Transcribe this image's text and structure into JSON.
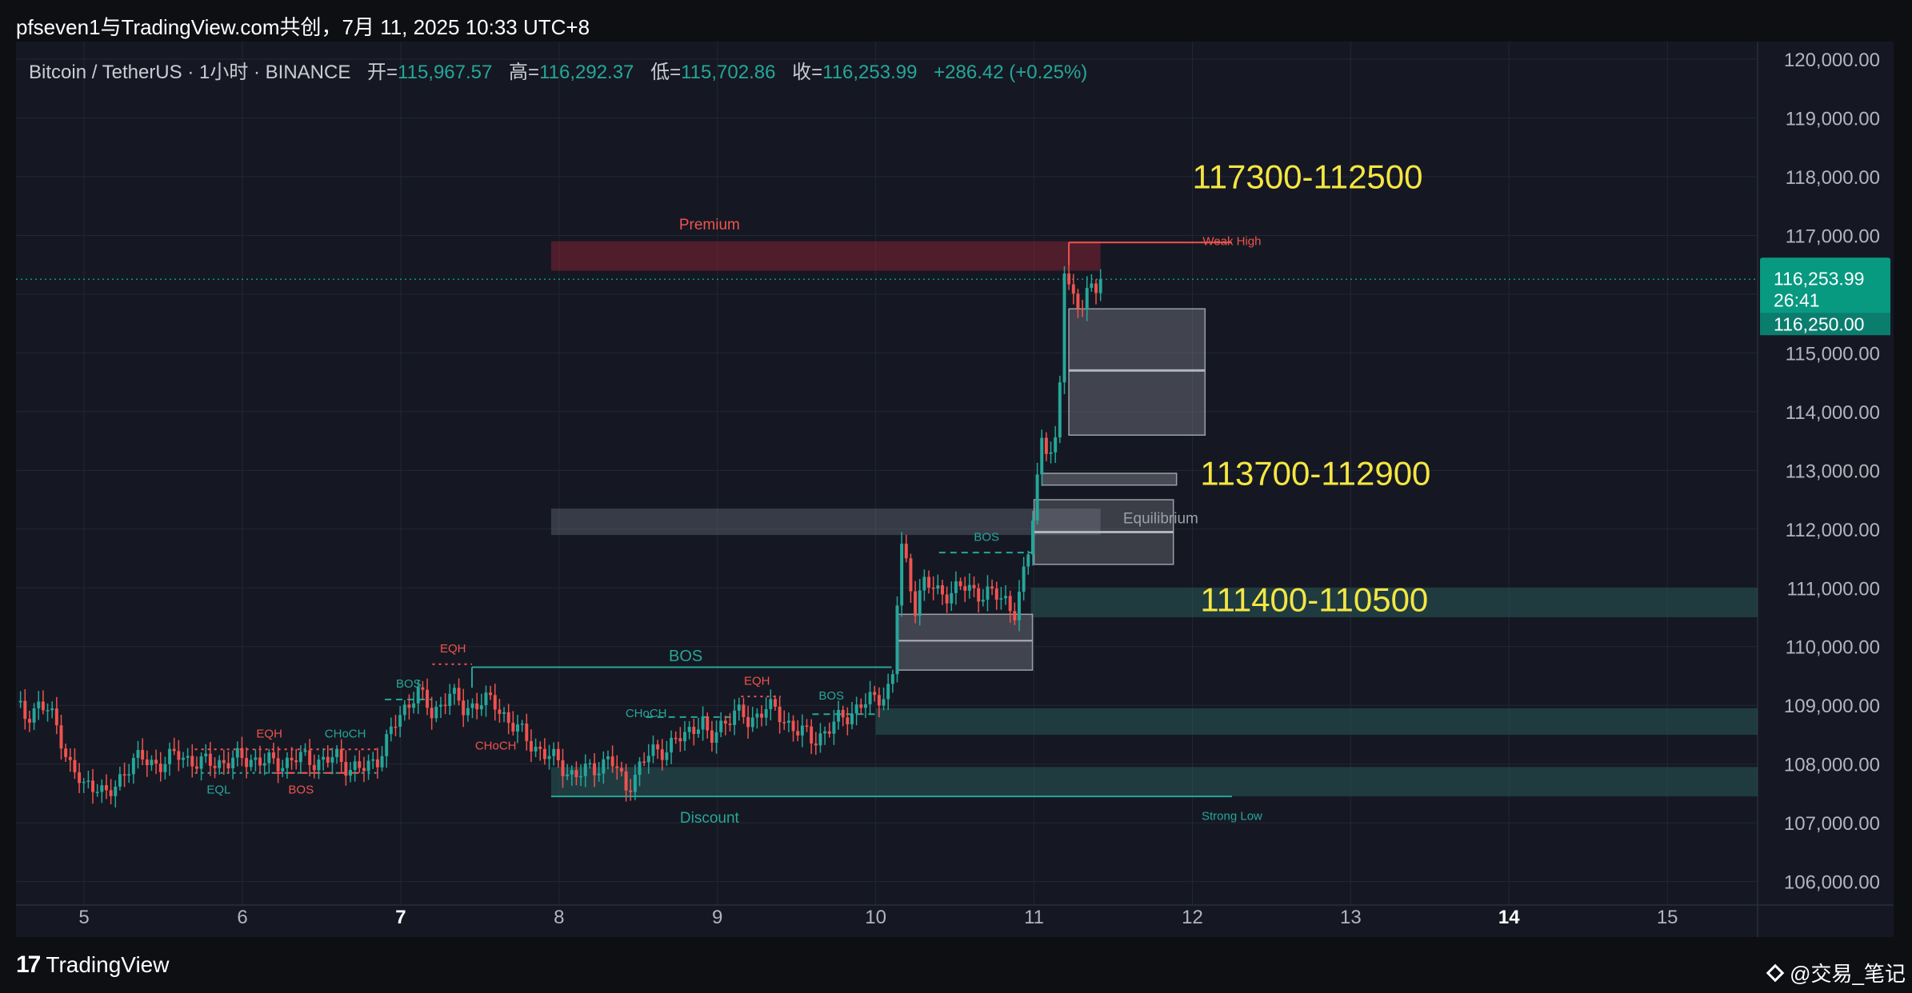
{
  "header": {
    "attribution": "pfseven1与TradingView.com共创，7月 11, 2025 10:33 UTC+8"
  },
  "symbol": {
    "name": "Bitcoin / TetherUS · 1小时 · BINANCE",
    "open_label": "开=",
    "open": "115,967.57",
    "high_label": "高=",
    "high": "116,292.37",
    "low_label": "低=",
    "low": "115,702.86",
    "close_label": "收=",
    "close": "116,253.99",
    "change": "+286.42 (+0.25%)"
  },
  "price_tag": {
    "price": "116,253.99",
    "countdown": "26:41",
    "price2": "116,250.00",
    "color": "#089981"
  },
  "footer": {
    "brand": "TradingView",
    "logo": "17",
    "watermark": "@交易_笔记"
  },
  "chart_data": {
    "type": "candlestick",
    "yaxis": {
      "range": [
        105600,
        120300
      ],
      "ticks": [
        120000,
        119000,
        118000,
        117000,
        116000,
        115000,
        114000,
        113000,
        112000,
        111000,
        110000,
        109000,
        108000,
        107000,
        106000
      ],
      "tick_labels": [
        "120,000.00",
        "119,000.00",
        "118,000.00",
        "117,000.00",
        "116,000.00",
        "115,000.00",
        "114,000.00",
        "113,000.00",
        "112,000.00",
        "111,000.00",
        "110,000.00",
        "109,000.00",
        "108,000.00",
        "107,000.00",
        "106,000.00"
      ]
    },
    "xaxis": {
      "range": [
        4.57,
        15.57
      ],
      "ticks": [
        5,
        6,
        7,
        8,
        9,
        10,
        11,
        12,
        13,
        14,
        15
      ],
      "tick_labels": [
        "5",
        "6",
        "7",
        "8",
        "9",
        "10",
        "11",
        "12",
        "13",
        "14",
        "15"
      ],
      "bold_ticks": [
        7,
        14
      ]
    },
    "colors": {
      "up": "#26a69a",
      "down": "#ef5350"
    },
    "current_price": 116253.99,
    "anchors": [
      [
        4.57,
        109050
      ],
      [
        4.62,
        108800
      ],
      [
        4.7,
        109000
      ],
      [
        4.78,
        108900
      ],
      [
        4.85,
        108500
      ],
      [
        4.92,
        107900
      ],
      [
        5.0,
        107600
      ],
      [
        5.08,
        107700
      ],
      [
        5.15,
        107400
      ],
      [
        5.22,
        107700
      ],
      [
        5.3,
        108100
      ],
      [
        5.45,
        108000
      ],
      [
        5.6,
        108150
      ],
      [
        5.75,
        108000
      ],
      [
        5.9,
        108050
      ],
      [
        6.05,
        108100
      ],
      [
        6.2,
        108000
      ],
      [
        6.35,
        108100
      ],
      [
        6.5,
        108050
      ],
      [
        6.6,
        108100
      ],
      [
        6.68,
        107950
      ],
      [
        6.78,
        107900
      ],
      [
        6.85,
        108100
      ],
      [
        6.95,
        108600
      ],
      [
        7.03,
        108950
      ],
      [
        7.1,
        109300
      ],
      [
        7.2,
        108800
      ],
      [
        7.3,
        109250
      ],
      [
        7.4,
        108900
      ],
      [
        7.5,
        109100
      ],
      [
        7.6,
        109000
      ],
      [
        7.7,
        108700
      ],
      [
        7.8,
        108400
      ],
      [
        7.9,
        108200
      ],
      [
        8.0,
        108000
      ],
      [
        8.1,
        107800
      ],
      [
        8.2,
        107900
      ],
      [
        8.32,
        108100
      ],
      [
        8.42,
        107600
      ],
      [
        8.5,
        107900
      ],
      [
        8.58,
        108200
      ],
      [
        8.7,
        108300
      ],
      [
        8.8,
        108500
      ],
      [
        8.9,
        108800
      ],
      [
        8.95,
        108300
      ],
      [
        9.0,
        108600
      ],
      [
        9.1,
        108900
      ],
      [
        9.2,
        108700
      ],
      [
        9.3,
        109000
      ],
      [
        9.4,
        108800
      ],
      [
        9.5,
        108600
      ],
      [
        9.6,
        108400
      ],
      [
        9.7,
        108600
      ],
      [
        9.8,
        108800
      ],
      [
        9.9,
        109000
      ],
      [
        10.0,
        109100
      ],
      [
        10.08,
        109300
      ],
      [
        10.12,
        109600
      ],
      [
        10.15,
        111800
      ],
      [
        10.2,
        111300
      ],
      [
        10.25,
        110700
      ],
      [
        10.3,
        111100
      ],
      [
        10.4,
        110900
      ],
      [
        10.55,
        111000
      ],
      [
        10.7,
        110900
      ],
      [
        10.82,
        110800
      ],
      [
        10.88,
        110600
      ],
      [
        10.92,
        111000
      ],
      [
        10.96,
        111500
      ],
      [
        11.0,
        112400
      ],
      [
        11.05,
        113600
      ],
      [
        11.1,
        113300
      ],
      [
        11.15,
        113400
      ],
      [
        11.19,
        116500
      ],
      [
        11.24,
        116000
      ],
      [
        11.3,
        115800
      ],
      [
        11.36,
        116000
      ],
      [
        11.42,
        116253.99
      ]
    ],
    "annotations": {
      "big_labels": [
        "117300-112500",
        "113700-112900",
        "111400-110500"
      ],
      "premium": "Premium",
      "equilibrium": "Equilibrium",
      "discount": "Discount",
      "weak_high": "Weak High",
      "strong_low": "Strong Low",
      "bos": "BOS",
      "eqh": "EQH",
      "eql": "EQL",
      "choch": "CHoCH"
    },
    "big_label_color": "#f5e642"
  }
}
